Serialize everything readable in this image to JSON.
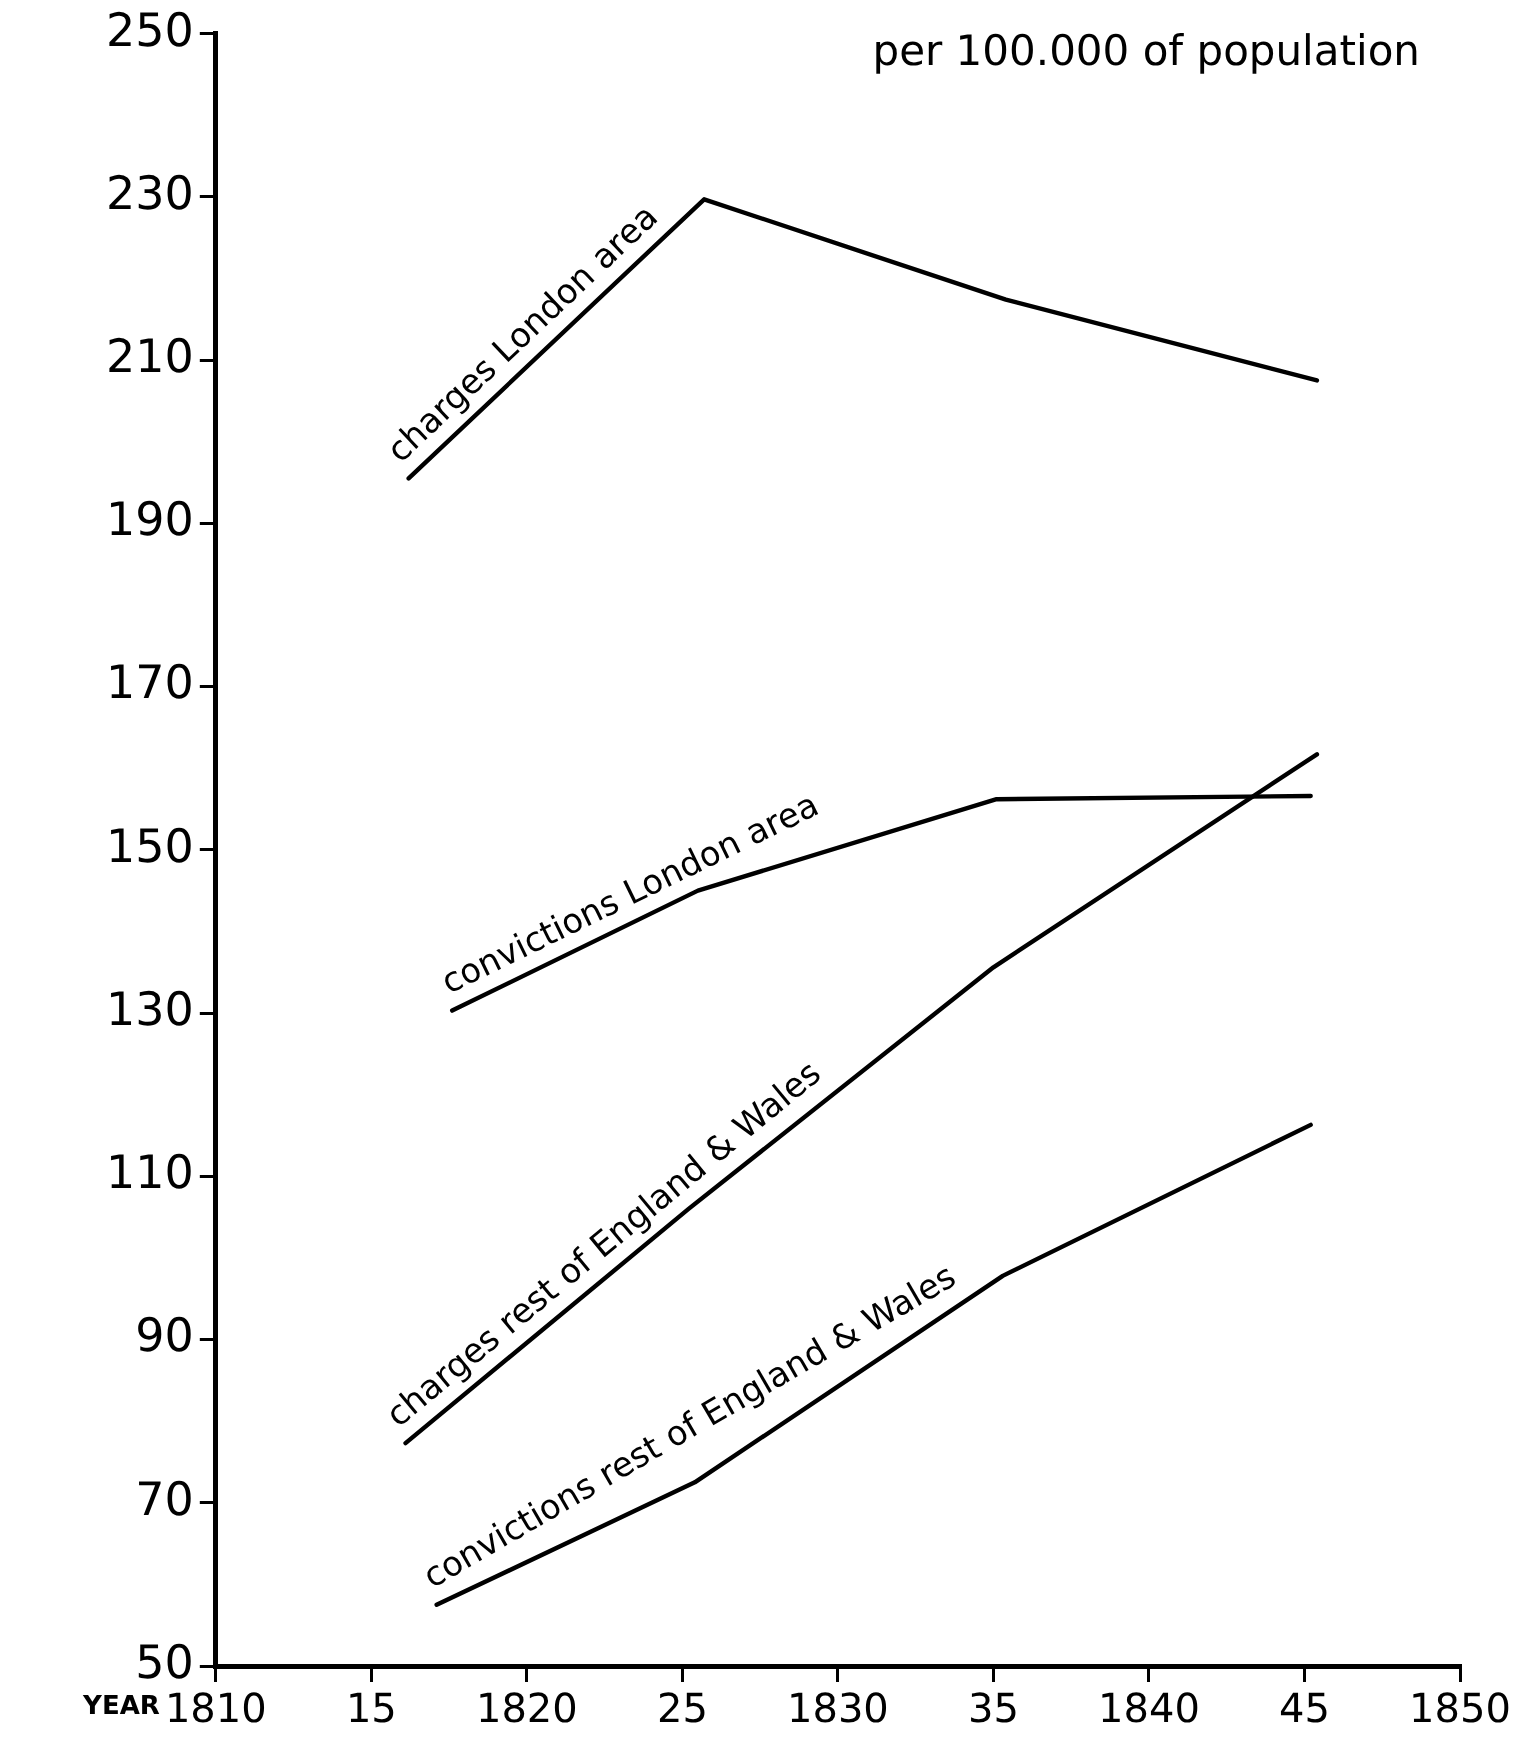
{
  "chart_data": {
    "type": "line",
    "ylabel": "per 100.000 of population",
    "xlabel": "YEAR",
    "xlim": [
      1810,
      1850
    ],
    "xticks": [
      1810,
      {
        "value": 1815,
        "label": "15"
      },
      1820,
      {
        "value": 1825,
        "label": "25"
      },
      1830,
      {
        "value": 1835,
        "label": "35"
      },
      1840,
      {
        "value": 1845,
        "label": "45"
      },
      1850
    ],
    "ylim": [
      50,
      250
    ],
    "yticks": [
      50,
      70,
      90,
      110,
      130,
      150,
      170,
      190,
      210,
      230,
      250
    ],
    "grid": false,
    "legend": false,
    "marker": "none",
    "line_style": "solid",
    "series": [
      {
        "name": "charges London area",
        "color": "#000000",
        "x": [
          1816.2,
          1825.7,
          1835.4,
          1845.4
        ],
        "values": [
          195.5,
          229.7,
          217.4,
          207.5
        ]
      },
      {
        "name": "convictions London area",
        "color": "#000000",
        "x": [
          1817.6,
          1825.5,
          1835.1,
          1845.2
        ],
        "values": [
          130.3,
          145,
          156.2,
          156.6
        ]
      },
      {
        "name": "charges rest of England & Wales",
        "color": "#000000",
        "x": [
          1816.1,
          1825.2,
          1835,
          1845.4
        ],
        "values": [
          77.3,
          106,
          135.6,
          161.7
        ]
      },
      {
        "name": "convictions rest of England & Wales",
        "color": "#000000",
        "x": [
          1817.1,
          1825.4,
          1835.3,
          1845.2
        ],
        "values": [
          57.5,
          72.5,
          97.8,
          116.3
        ]
      }
    ]
  }
}
